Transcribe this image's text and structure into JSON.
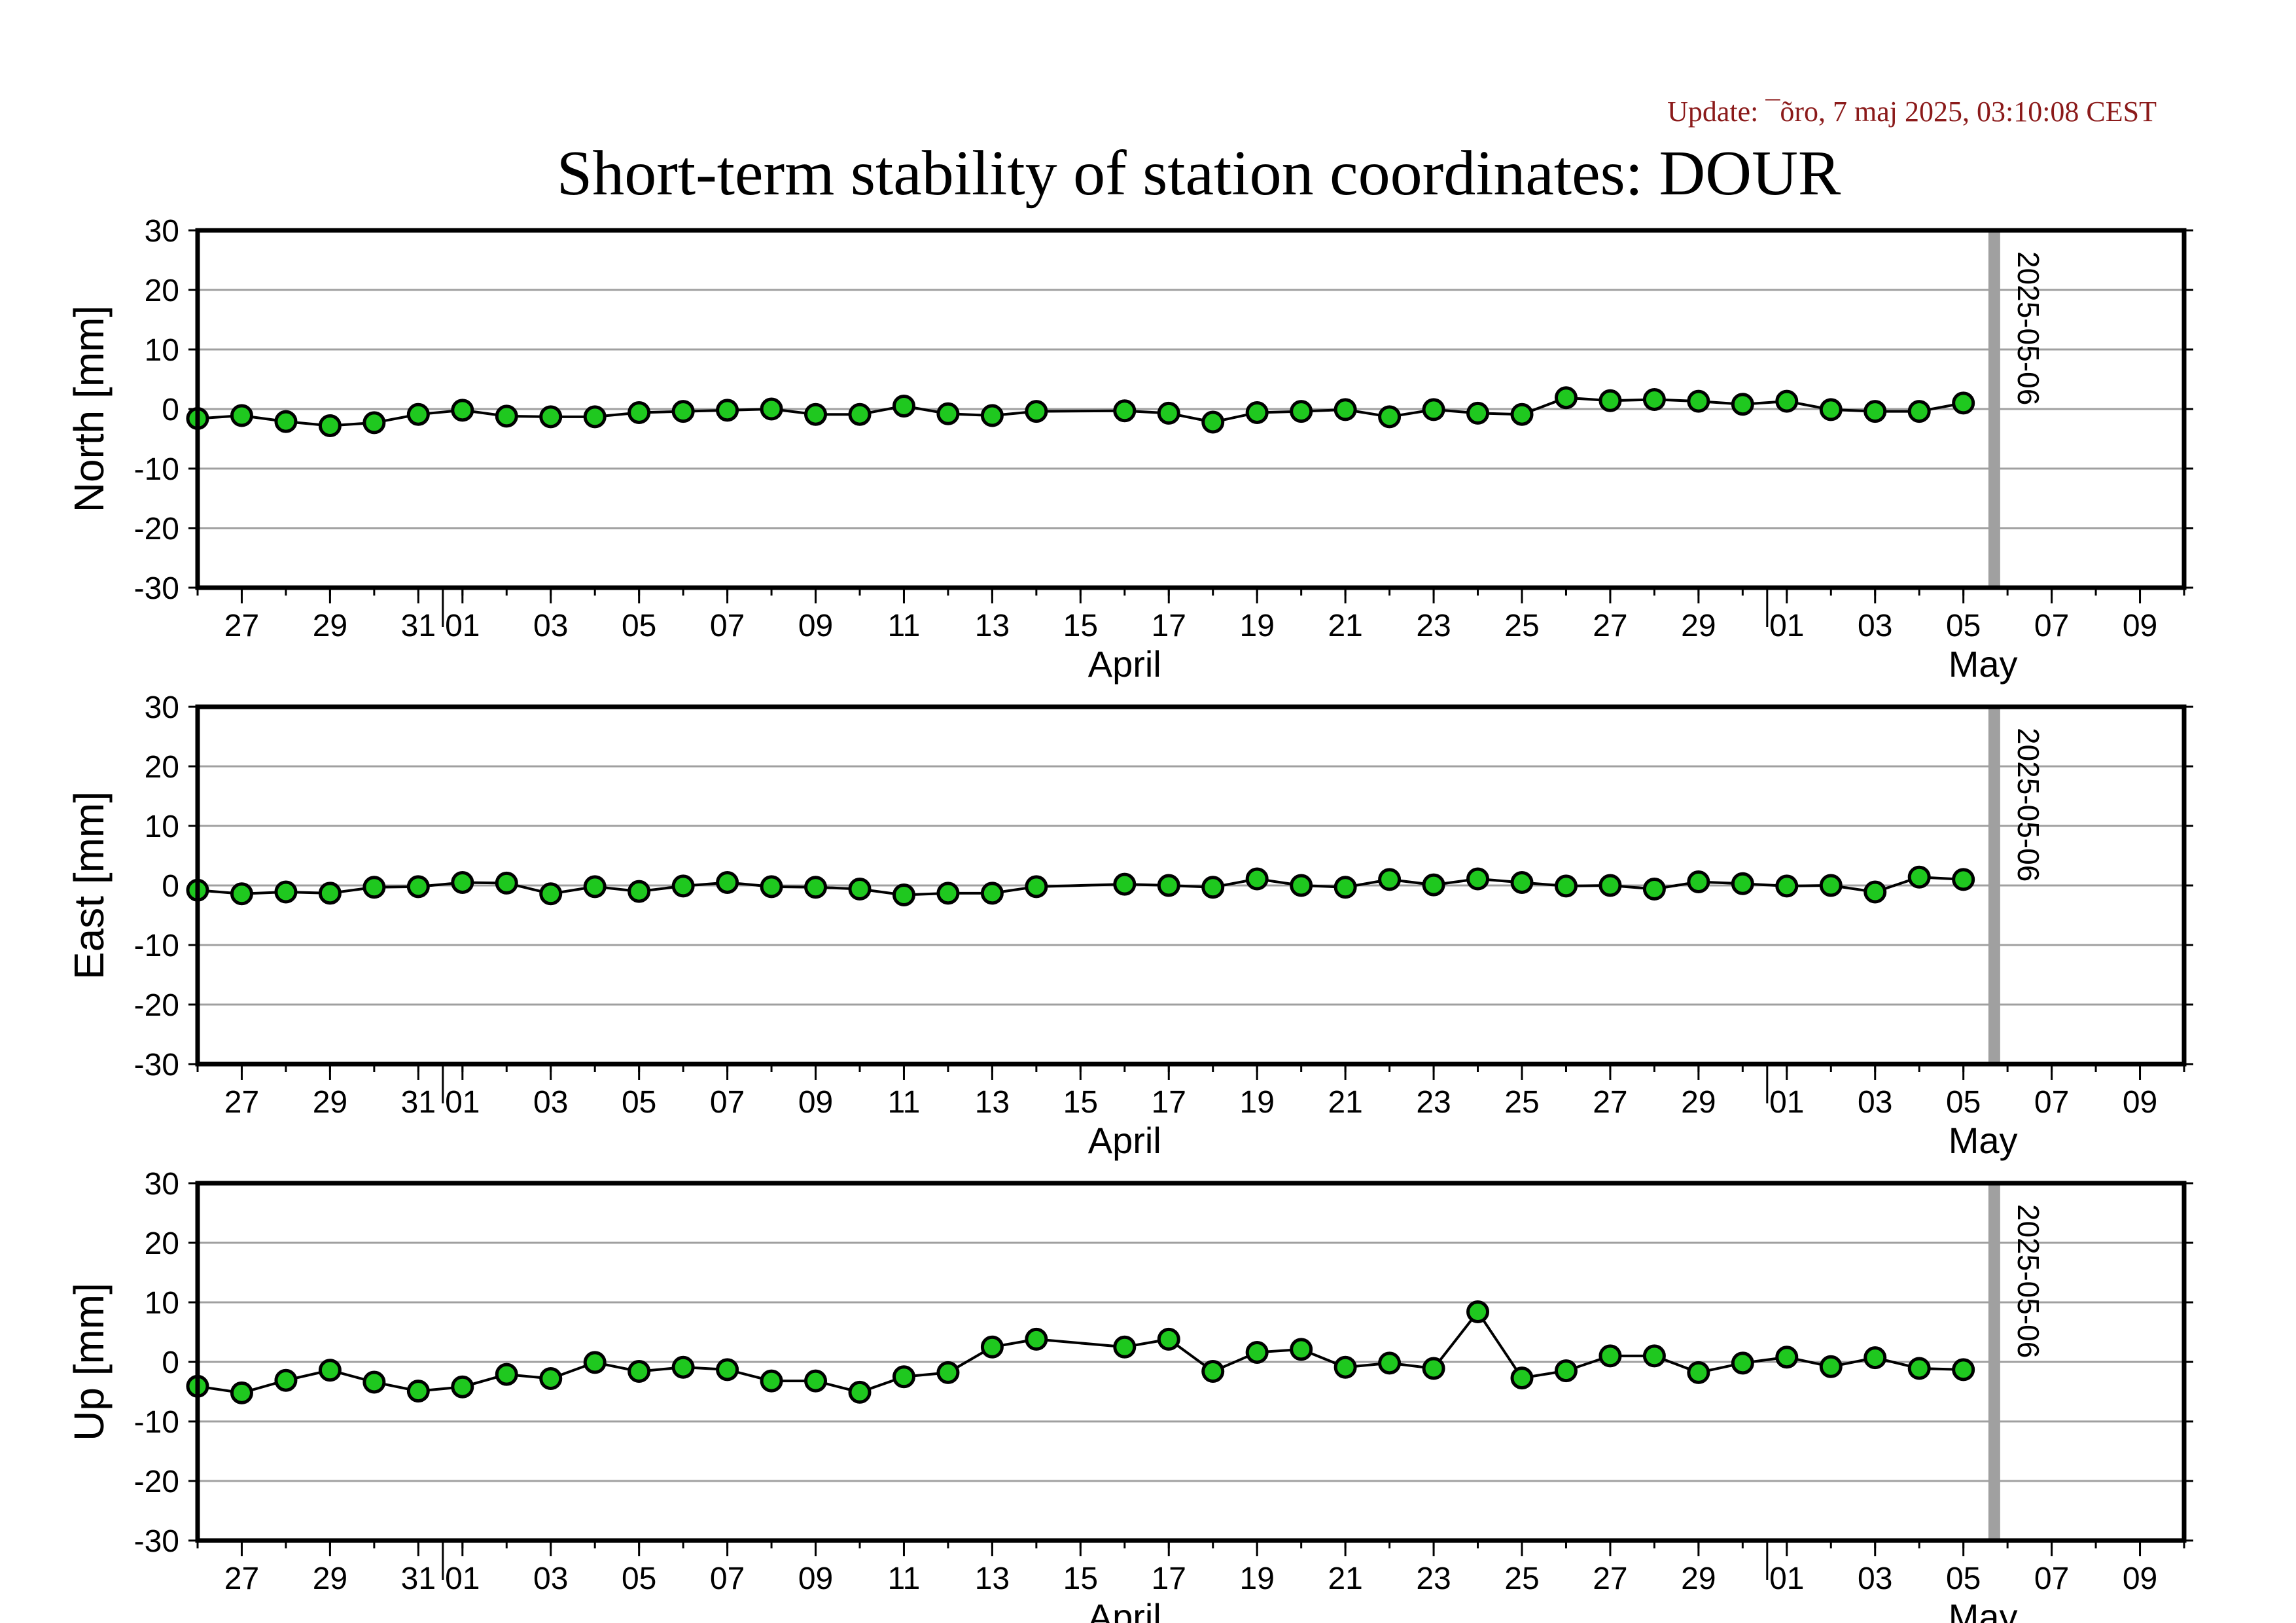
{
  "header": {
    "update": "Update: ¯õro, 7 maj 2025, 03:10:08 CEST",
    "title": "Short-term stability of station coordinates: DOUR"
  },
  "colors": {
    "marker_fill": "#1fc81f",
    "marker_edge": "#000000",
    "line": "#000000",
    "grid": "#a0a0a0",
    "vline": "#a0a0a0"
  },
  "chart_data": [
    {
      "type": "line",
      "ylabel": "North [mm]",
      "ylim": [
        -30,
        30
      ],
      "yticks": [
        -30,
        -20,
        -10,
        0,
        10,
        20,
        30
      ],
      "xlim": [
        "2025-03-26",
        "2025-05-10"
      ],
      "xticks": [
        "27",
        "29",
        "31",
        "01",
        "03",
        "05",
        "07",
        "09",
        "11",
        "13",
        "15",
        "17",
        "19",
        "21",
        "23",
        "25",
        "27",
        "29",
        "01",
        "03",
        "05",
        "07",
        "09"
      ],
      "months": [
        "April",
        "May"
      ],
      "marker_label": "2025-05-06",
      "grid": true,
      "series": [
        {
          "x": [
            "2025-03-26",
            "2025-03-27",
            "2025-03-28",
            "2025-03-29",
            "2025-03-30",
            "2025-03-31",
            "2025-04-01",
            "2025-04-02",
            "2025-04-03",
            "2025-04-04",
            "2025-04-05",
            "2025-04-06",
            "2025-04-07",
            "2025-04-08",
            "2025-04-09",
            "2025-04-10",
            "2025-04-11",
            "2025-04-12",
            "2025-04-13",
            "2025-04-14",
            "2025-04-16",
            "2025-04-17",
            "2025-04-18",
            "2025-04-19",
            "2025-04-20",
            "2025-04-21",
            "2025-04-22",
            "2025-04-23",
            "2025-04-24",
            "2025-04-25",
            "2025-04-26",
            "2025-04-27",
            "2025-04-28",
            "2025-04-29",
            "2025-04-30",
            "2025-05-01",
            "2025-05-02",
            "2025-05-03",
            "2025-05-04",
            "2025-05-05"
          ],
          "values": [
            -1.6,
            -1.1,
            -2.1,
            -2.8,
            -2.3,
            -0.9,
            -0.2,
            -1.2,
            -1.3,
            -1.3,
            -0.6,
            -0.4,
            -0.2,
            0.0,
            -0.9,
            -0.9,
            0.5,
            -0.8,
            -1.1,
            -0.4,
            -0.3,
            -0.7,
            -2.2,
            -0.6,
            -0.4,
            -0.1,
            -1.3,
            -0.1,
            -0.7,
            -0.9,
            1.9,
            1.4,
            1.6,
            1.3,
            0.8,
            1.3,
            -0.1,
            -0.4,
            -0.4,
            1.0
          ]
        }
      ]
    },
    {
      "type": "line",
      "ylabel": "East [mm]",
      "ylim": [
        -30,
        30
      ],
      "yticks": [
        -30,
        -20,
        -10,
        0,
        10,
        20,
        30
      ],
      "xlim": [
        "2025-03-26",
        "2025-05-10"
      ],
      "xticks": [
        "27",
        "29",
        "31",
        "01",
        "03",
        "05",
        "07",
        "09",
        "11",
        "13",
        "15",
        "17",
        "19",
        "21",
        "23",
        "25",
        "27",
        "29",
        "01",
        "03",
        "05",
        "07",
        "09"
      ],
      "months": [
        "April",
        "May"
      ],
      "marker_label": "2025-05-06",
      "grid": true,
      "series": [
        {
          "x": [
            "2025-03-26",
            "2025-03-27",
            "2025-03-28",
            "2025-03-29",
            "2025-03-30",
            "2025-03-31",
            "2025-04-01",
            "2025-04-02",
            "2025-04-03",
            "2025-04-04",
            "2025-04-05",
            "2025-04-06",
            "2025-04-07",
            "2025-04-08",
            "2025-04-09",
            "2025-04-10",
            "2025-04-11",
            "2025-04-12",
            "2025-04-13",
            "2025-04-14",
            "2025-04-16",
            "2025-04-17",
            "2025-04-18",
            "2025-04-19",
            "2025-04-20",
            "2025-04-21",
            "2025-04-22",
            "2025-04-23",
            "2025-04-24",
            "2025-04-25",
            "2025-04-26",
            "2025-04-27",
            "2025-04-28",
            "2025-04-29",
            "2025-04-30",
            "2025-05-01",
            "2025-05-02",
            "2025-05-03",
            "2025-05-04",
            "2025-05-05"
          ],
          "values": [
            -0.8,
            -1.4,
            -1.1,
            -1.3,
            -0.3,
            -0.2,
            0.5,
            0.4,
            -1.4,
            -0.2,
            -1.0,
            -0.1,
            0.5,
            -0.2,
            -0.3,
            -0.6,
            -1.6,
            -1.3,
            -1.3,
            -0.2,
            0.2,
            0.0,
            -0.3,
            1.1,
            0.0,
            -0.3,
            1.0,
            0.1,
            1.1,
            0.5,
            -0.1,
            0.0,
            -0.6,
            0.6,
            0.3,
            -0.1,
            0.0,
            -1.1,
            1.4,
            1.0
          ]
        }
      ]
    },
    {
      "type": "line",
      "ylabel": "Up [mm]",
      "ylim": [
        -30,
        30
      ],
      "yticks": [
        -30,
        -20,
        -10,
        0,
        10,
        20,
        30
      ],
      "xlim": [
        "2025-03-26",
        "2025-05-10"
      ],
      "xticks": [
        "27",
        "29",
        "31",
        "01",
        "03",
        "05",
        "07",
        "09",
        "11",
        "13",
        "15",
        "17",
        "19",
        "21",
        "23",
        "25",
        "27",
        "29",
        "01",
        "03",
        "05",
        "07",
        "09"
      ],
      "months": [
        "April",
        "May"
      ],
      "marker_label": "2025-05-06",
      "grid": true,
      "series": [
        {
          "x": [
            "2025-03-26",
            "2025-03-27",
            "2025-03-28",
            "2025-03-29",
            "2025-03-30",
            "2025-03-31",
            "2025-04-01",
            "2025-04-02",
            "2025-04-03",
            "2025-04-04",
            "2025-04-05",
            "2025-04-06",
            "2025-04-07",
            "2025-04-08",
            "2025-04-09",
            "2025-04-10",
            "2025-04-11",
            "2025-04-12",
            "2025-04-13",
            "2025-04-14",
            "2025-04-16",
            "2025-04-17",
            "2025-04-18",
            "2025-04-19",
            "2025-04-20",
            "2025-04-21",
            "2025-04-22",
            "2025-04-23",
            "2025-04-24",
            "2025-04-25",
            "2025-04-26",
            "2025-04-27",
            "2025-04-28",
            "2025-04-29",
            "2025-04-30",
            "2025-05-01",
            "2025-05-02",
            "2025-05-03",
            "2025-05-04",
            "2025-05-05"
          ],
          "values": [
            -4.1,
            -5.2,
            -3.1,
            -1.4,
            -3.4,
            -4.9,
            -4.2,
            -2.1,
            -2.8,
            -0.1,
            -1.6,
            -0.9,
            -1.3,
            -3.2,
            -3.2,
            -5.1,
            -2.5,
            -1.8,
            2.5,
            3.8,
            2.5,
            3.8,
            -1.6,
            1.6,
            2.1,
            -0.9,
            -0.2,
            -1.1,
            8.4,
            -2.7,
            -1.5,
            1.0,
            1.0,
            -1.8,
            -0.2,
            0.8,
            -0.8,
            0.7,
            -1.1,
            -1.3
          ]
        }
      ]
    }
  ]
}
